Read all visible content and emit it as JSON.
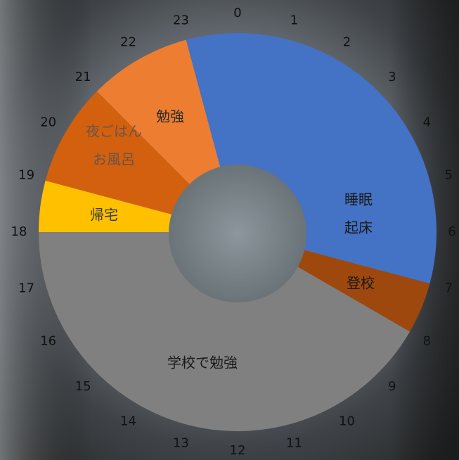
{
  "chart_data": {
    "type": "donut",
    "categories": [
      [
        "睡眠",
        "起床"
      ],
      [
        "登校"
      ],
      [
        "学校で勉強"
      ],
      [
        "帰宅"
      ],
      [
        "夜ごはん",
        "お風呂"
      ],
      [
        "勉強"
      ],
      null
    ],
    "values": [
      7,
      1,
      10,
      1,
      2,
      2,
      1
    ],
    "colors": [
      "#4472c4",
      "#9e480e",
      "#808080",
      "#ffc000",
      "#d2600f",
      "#ed7d31",
      "#4472c4"
    ],
    "label_colors": [
      "#1a1a1a",
      "#1a1a1a",
      "#1a1a1a",
      "#3a3a3a",
      "#6b5545",
      "#2a2a2a",
      "#1a1a1a"
    ],
    "hours": [
      0,
      1,
      2,
      3,
      4,
      5,
      6,
      7,
      8,
      9,
      10,
      11,
      12,
      13,
      14,
      15,
      16,
      17,
      18,
      19,
      20,
      21,
      22,
      23
    ]
  }
}
